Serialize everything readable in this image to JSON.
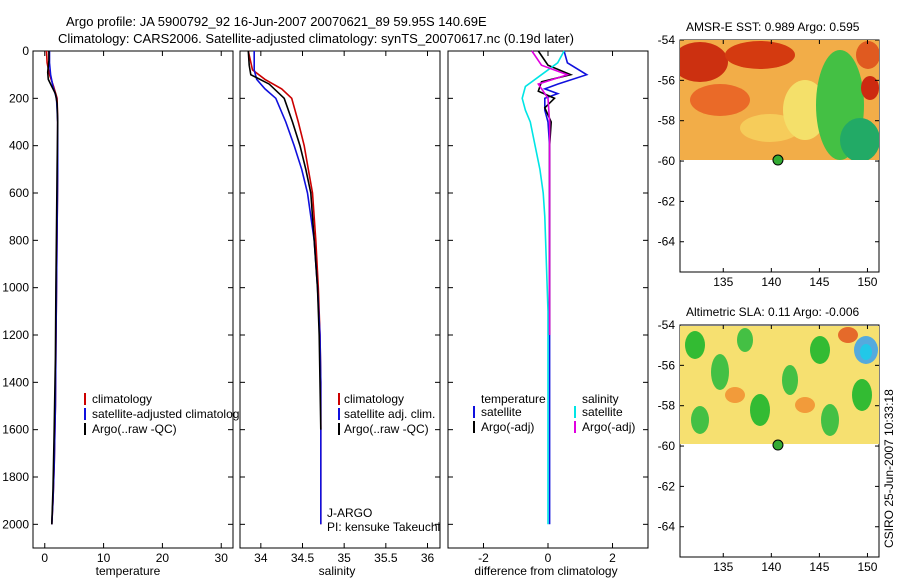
{
  "header": {
    "line1": "Argo profile: JA 5900792_92 16-Jun-2007 20070621_89 59.95S 140.69E",
    "line2": "Climatology: CARS2006. Satellite-adjusted climatology: synTS_20070617.nc (0.19d later)"
  },
  "colors": {
    "climatology": "#cc0000",
    "satellite": "#1010dd",
    "argo": "#000000",
    "sat_sal_diff": "#00e5e5",
    "argo_sal_diff": "#e000e0"
  },
  "chart_data": [
    {
      "type": "line",
      "name": "temperature",
      "xlabel": "temperature",
      "ylabel": "",
      "xlim": [
        -2,
        32
      ],
      "ylim": [
        2100,
        0
      ],
      "xticks": [
        0,
        10,
        20,
        30
      ],
      "yticks": [
        0,
        200,
        400,
        600,
        800,
        1000,
        1200,
        1400,
        1600,
        1800,
        2000
      ],
      "legend": [
        "climatology",
        "satellite-adjusted climatology",
        "Argo(..raw -QC)"
      ],
      "series": [
        {
          "name": "climatology",
          "color": "climatology",
          "x": [
            0.3,
            0.4,
            0.8,
            1.5,
            2.1,
            2.2,
            2.2,
            2.1,
            2.0,
            1.9,
            1.8,
            1.6,
            1.4,
            1.2
          ],
          "y": [
            0,
            50,
            100,
            150,
            200,
            300,
            500,
            750,
            1000,
            1250,
            1500,
            1750,
            1900,
            2000
          ]
        },
        {
          "name": "satellite-adjusted climatology",
          "color": "satellite",
          "x": [
            0.8,
            0.8,
            1.0,
            1.4,
            2.0,
            2.2,
            2.2,
            2.1,
            2.0,
            1.9,
            1.8,
            1.6,
            1.4,
            1.2
          ],
          "y": [
            0,
            50,
            100,
            150,
            200,
            300,
            500,
            750,
            1000,
            1250,
            1500,
            1750,
            1900,
            2000
          ]
        },
        {
          "name": "Argo(..raw -QC)",
          "color": "argo",
          "x": [
            0.7,
            0.7,
            0.5,
            0.6,
            1.2,
            1.8,
            2.1,
            2.2,
            2.1,
            2.0,
            1.9,
            1.8,
            1.6,
            1.4,
            1.2
          ],
          "y": [
            0,
            40,
            90,
            120,
            150,
            180,
            220,
            300,
            500,
            750,
            1000,
            1300,
            1600,
            1850,
            2000
          ]
        }
      ]
    },
    {
      "type": "line",
      "name": "salinity",
      "xlabel": "salinity",
      "xlim": [
        33.75,
        36.15
      ],
      "ylim": [
        2100,
        0
      ],
      "xticks": [
        34,
        34.5,
        35,
        35.5,
        36
      ],
      "legend": [
        "climatology",
        "satellite adj. clim.",
        "Argo(..raw -QC)"
      ],
      "annotation": [
        "J-ARGO",
        "PI: kensuke Takeuchi"
      ],
      "series": [
        {
          "name": "climatology",
          "color": "climatology",
          "x": [
            33.85,
            33.9,
            34.05,
            34.25,
            34.37,
            34.45,
            34.52,
            34.57,
            34.62,
            34.66,
            34.69,
            34.71,
            34.72,
            34.72,
            34.72
          ],
          "y": [
            0,
            80,
            120,
            160,
            200,
            300,
            400,
            500,
            600,
            800,
            1000,
            1200,
            1400,
            1700,
            2000
          ]
        },
        {
          "name": "satellite adj. clim.",
          "color": "satellite",
          "x": [
            33.92,
            33.92,
            33.95,
            34.05,
            34.18,
            34.3,
            34.4,
            34.49,
            34.56,
            34.64,
            34.68,
            34.71,
            34.72,
            34.72,
            34.72
          ],
          "y": [
            0,
            80,
            120,
            160,
            200,
            300,
            400,
            500,
            600,
            800,
            1000,
            1200,
            1400,
            1700,
            2000
          ]
        },
        {
          "name": "Argo(..raw -QC)",
          "color": "argo",
          "x": [
            33.85,
            33.86,
            33.88,
            34.1,
            34.28,
            34.38,
            34.47,
            34.54,
            34.6,
            34.64,
            34.68,
            34.7,
            34.71,
            34.72
          ],
          "y": [
            0,
            60,
            100,
            140,
            200,
            300,
            400,
            500,
            600,
            800,
            1000,
            1200,
            1400,
            1600
          ]
        }
      ]
    },
    {
      "type": "line",
      "name": "difference",
      "xlabel": "difference from climatology",
      "xlim": [
        -3.1,
        3.1
      ],
      "ylim": [
        2100,
        0
      ],
      "xticks": [
        -2,
        0,
        2
      ],
      "legend": [
        "temperature",
        "satellite",
        "Argo(-adj)",
        "salinity",
        "satellite",
        "Argo(-adj)"
      ],
      "series": [
        {
          "name": "temperature satellite",
          "color": "satellite",
          "x": [
            0.5,
            0.6,
            1.2,
            0.3,
            -0.1,
            0.3,
            -0.1,
            -0.1,
            0.0,
            0.05,
            0.05,
            0.05,
            0.05,
            0.05,
            0.05,
            0.05
          ],
          "y": [
            0,
            50,
            100,
            140,
            160,
            180,
            200,
            250,
            300,
            400,
            600,
            800,
            1000,
            1300,
            1600,
            2000
          ]
        },
        {
          "name": "temperature Argo(-adj)",
          "color": "argo",
          "x": [
            -0.3,
            0.0,
            0.7,
            -0.2,
            -0.3,
            0.2,
            -0.1,
            0.1,
            0.05,
            0.05,
            0.05,
            0.05,
            0.05
          ],
          "y": [
            0,
            60,
            100,
            130,
            170,
            200,
            240,
            300,
            400,
            600,
            800,
            1000,
            1200
          ]
        },
        {
          "name": "salinity satellite",
          "color": "sat_sal_diff",
          "x": [
            0.5,
            0.3,
            -0.2,
            -0.7,
            -0.8,
            -0.7,
            -0.55,
            -0.4,
            -0.25,
            -0.15,
            -0.1,
            -0.05,
            0.0,
            0.0,
            0.0,
            0.0
          ],
          "y": [
            0,
            50,
            100,
            150,
            200,
            250,
            300,
            400,
            500,
            600,
            700,
            900,
            1100,
            1400,
            1700,
            2000
          ]
        },
        {
          "name": "salinity Argo(-adj)",
          "color": "argo_sal_diff",
          "x": [
            -0.5,
            -0.2,
            0.6,
            -0.3,
            0.0,
            0.05,
            0.05,
            0.05,
            0.05,
            0.05,
            0.05
          ],
          "y": [
            0,
            60,
            100,
            140,
            200,
            300,
            400,
            600,
            800,
            1000,
            1200
          ]
        }
      ]
    },
    {
      "type": "heatmap",
      "name": "sst_map",
      "title": "AMSR-E SST: 0.989 Argo: 0.595",
      "xlim": [
        130.5,
        151.2
      ],
      "ylim": [
        -65.5,
        -54
      ],
      "xticks": [
        135,
        140,
        145,
        150
      ],
      "yticks": [
        -54,
        -56,
        -58,
        -60,
        -62,
        -64
      ],
      "data_extent_lat": [
        -60.1,
        -54
      ],
      "marker": {
        "lon": 140.69,
        "lat": -59.95
      }
    },
    {
      "type": "heatmap",
      "name": "sla_map",
      "title": "Altimetric SLA: 0.11 Argo: -0.006",
      "xlim": [
        130.5,
        151.2
      ],
      "ylim": [
        -65.5,
        -54
      ],
      "xticks": [
        135,
        140,
        145,
        150
      ],
      "yticks": [
        -54,
        -56,
        -58,
        -60,
        -62,
        -64
      ],
      "data_extent_lat": [
        -60.1,
        -54
      ],
      "marker": {
        "lon": 140.69,
        "lat": -59.95
      }
    }
  ],
  "footer": {
    "side_text": "CSIRO 25-Jun-2007 10:33:18"
  }
}
